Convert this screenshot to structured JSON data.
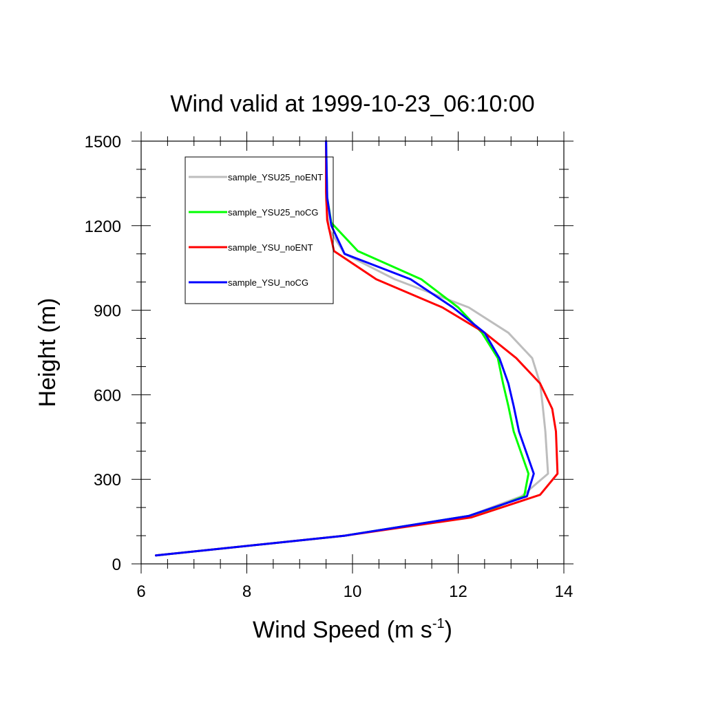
{
  "chart_data": {
    "type": "line",
    "title": "Wind valid at 1999-10-23_06:10:00",
    "xlabel": "Wind Speed (m s",
    "xlabel_sup": "-1",
    "xlabel_end": ")",
    "ylabel": "Height (m)",
    "xlim": [
      6,
      14
    ],
    "ylim": [
      0,
      1500
    ],
    "xticks": [
      6,
      8,
      10,
      12,
      14
    ],
    "yticks": [
      0,
      300,
      600,
      900,
      1200,
      1500
    ],
    "xtick_labels": [
      "6",
      "8",
      "10",
      "12",
      "14"
    ],
    "ytick_labels": [
      "0",
      "300",
      "600",
      "900",
      "1200",
      "1500"
    ],
    "legend_position": "top-left",
    "series": [
      {
        "name": "sample_YSU25_noENT",
        "color": "#bdbdbd",
        "points": [
          [
            6.28,
            30
          ],
          [
            9.85,
            100
          ],
          [
            12.2,
            170
          ],
          [
            13.2,
            240
          ],
          [
            13.7,
            320
          ],
          [
            13.65,
            470
          ],
          [
            13.6,
            560
          ],
          [
            13.55,
            640
          ],
          [
            13.4,
            730
          ],
          [
            12.95,
            820
          ],
          [
            12.2,
            910
          ],
          [
            10.8,
            1010
          ],
          [
            9.85,
            1100
          ],
          [
            9.55,
            1190
          ],
          [
            9.5,
            1290
          ],
          [
            9.5,
            1400
          ],
          [
            9.5,
            1500
          ]
        ]
      },
      {
        "name": "sample_YSU25_noCG",
        "color": "#00ff00",
        "points": [
          [
            6.28,
            30
          ],
          [
            9.85,
            100
          ],
          [
            12.2,
            170
          ],
          [
            12.7,
            200
          ],
          [
            13.25,
            240
          ],
          [
            13.33,
            320
          ],
          [
            13.05,
            470
          ],
          [
            12.95,
            560
          ],
          [
            12.85,
            640
          ],
          [
            12.75,
            730
          ],
          [
            12.45,
            820
          ],
          [
            12.0,
            910
          ],
          [
            11.3,
            1010
          ],
          [
            10.1,
            1110
          ],
          [
            9.6,
            1210
          ],
          [
            9.52,
            1300
          ],
          [
            9.5,
            1500
          ]
        ]
      },
      {
        "name": "sample_YSU_noENT",
        "color": "#ff0000",
        "points": [
          [
            6.28,
            30
          ],
          [
            9.85,
            100
          ],
          [
            12.25,
            165
          ],
          [
            13.55,
            245
          ],
          [
            13.88,
            320
          ],
          [
            13.85,
            470
          ],
          [
            13.78,
            550
          ],
          [
            13.55,
            640
          ],
          [
            13.1,
            730
          ],
          [
            12.5,
            820
          ],
          [
            11.7,
            910
          ],
          [
            10.45,
            1010
          ],
          [
            9.65,
            1110
          ],
          [
            9.52,
            1220
          ],
          [
            9.5,
            1320
          ],
          [
            9.5,
            1500
          ]
        ]
      },
      {
        "name": "sample_YSU_noCG",
        "color": "#0000ff",
        "points": [
          [
            6.28,
            30
          ],
          [
            9.85,
            100
          ],
          [
            12.2,
            170
          ],
          [
            13.3,
            240
          ],
          [
            13.43,
            320
          ],
          [
            13.15,
            470
          ],
          [
            13.05,
            560
          ],
          [
            12.95,
            640
          ],
          [
            12.78,
            730
          ],
          [
            12.5,
            820
          ],
          [
            11.9,
            910
          ],
          [
            11.1,
            1010
          ],
          [
            9.85,
            1100
          ],
          [
            9.6,
            1200
          ],
          [
            9.52,
            1300
          ],
          [
            9.5,
            1500
          ]
        ]
      }
    ]
  }
}
